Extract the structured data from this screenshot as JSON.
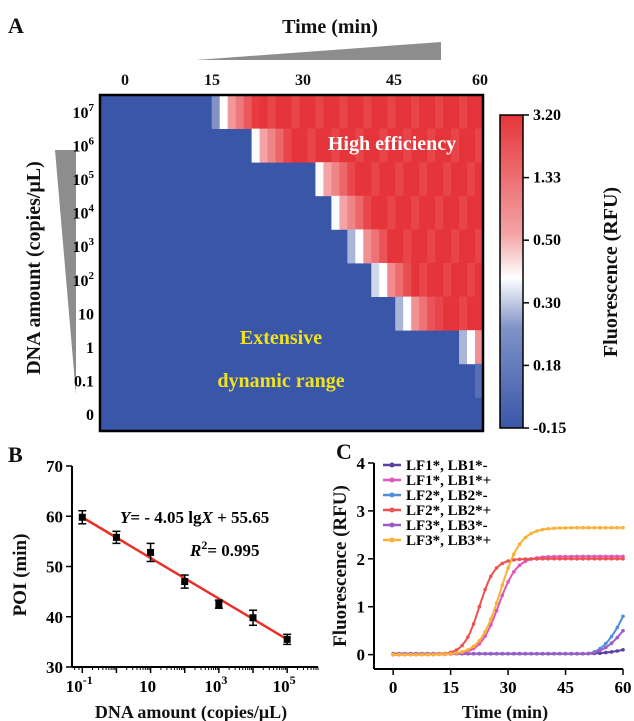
{
  "panels": {
    "a": {
      "letter": "A"
    },
    "b": {
      "letter": "B"
    },
    "c": {
      "letter": "C"
    }
  },
  "chart_data": [
    {
      "type": "heatmap",
      "panel": "A",
      "xlabel": "Time (min)",
      "ylabel": "DNA amount (copies/μL)",
      "x_ticks": [
        "0",
        "15",
        "30",
        "45",
        "60"
      ],
      "xlim": [
        0,
        60
      ],
      "rows": [
        {
          "label": "10",
          "exp": "7",
          "poi": 19.5
        },
        {
          "label": "10",
          "exp": "6",
          "poi": 25.0
        },
        {
          "label": "10",
          "exp": "5",
          "poi": 35.0
        },
        {
          "label": "10",
          "exp": "4",
          "poi": 37.5
        },
        {
          "label": "10",
          "exp": "3",
          "poi": 40.5
        },
        {
          "label": "10",
          "exp": "2",
          "poi": 44.0
        },
        {
          "label": "10",
          "exp": "",
          "poi": 48.0
        },
        {
          "label": "1",
          "exp": "",
          "poi": 58.0
        },
        {
          "label": "0.1",
          "exp": "",
          "poi": 61.0
        },
        {
          "label": "0",
          "exp": "",
          "poi": null
        }
      ],
      "colorbar": {
        "label": "Fluorescence (RFU)",
        "ticks": [
          "3.20",
          "1.33",
          "0.50",
          "0.30",
          "0.18",
          "-0.15"
        ],
        "colors": {
          "low": "#3a56a8",
          "mid": "#ffffff",
          "high": "#e6353a"
        }
      },
      "annotations": [
        {
          "text": "High efficiency",
          "color": "#ffffff"
        },
        {
          "text": "Extensive",
          "color": "#f0e31b"
        },
        {
          "text": "dynamic range",
          "color": "#f0e31b"
        }
      ]
    },
    {
      "type": "scatter",
      "panel": "B",
      "xlabel": "DNA amount (copies/μL)",
      "ylabel": "POI (min)",
      "x_scale": "log",
      "xlim": [
        0.05,
        800000
      ],
      "ylim": [
        30,
        70
      ],
      "y_ticks": [
        "30",
        "40",
        "50",
        "60",
        "70"
      ],
      "x_ticks": [
        {
          "base": "10",
          "exp": "-1",
          "value": 0.1
        },
        {
          "base": "10",
          "exp": "",
          "value": 10
        },
        {
          "base": "10",
          "exp": "3",
          "value": 1000
        },
        {
          "base": "10",
          "exp": "5",
          "value": 100000
        }
      ],
      "points": [
        {
          "x": 0.1,
          "y": 59.8,
          "err": 1.3
        },
        {
          "x": 1,
          "y": 55.8,
          "err": 1.2
        },
        {
          "x": 10,
          "y": 52.8,
          "err": 1.8
        },
        {
          "x": 100,
          "y": 47.0,
          "err": 1.3
        },
        {
          "x": 1000,
          "y": 42.5,
          "err": 0.8
        },
        {
          "x": 10000,
          "y": 39.8,
          "err": 1.5
        },
        {
          "x": 100000,
          "y": 35.5,
          "err": 1.0
        }
      ],
      "fit": {
        "slope": -4.05,
        "intercept": 55.65,
        "color": "#e8302a"
      },
      "equation": "Y= - 4.05 lgX + 55.65",
      "r2": "R² = 0.995"
    },
    {
      "type": "line",
      "panel": "C",
      "xlabel": "Time (min)",
      "ylabel": "Fluorescence (RFU)",
      "xlim": [
        -5,
        60
      ],
      "ylim": [
        -0.3,
        4
      ],
      "x_ticks": [
        "0",
        "15",
        "30",
        "45",
        "60"
      ],
      "y_ticks": [
        "0",
        "1",
        "2",
        "3",
        "4"
      ],
      "series": [
        {
          "name": "LF1*, LB1*-",
          "color": "#5b3fa0",
          "type": "neg",
          "end": 0.1
        },
        {
          "name": "LF1*, LB1*+",
          "color": "#e055b8",
          "type": "pos",
          "mid": 27.5,
          "k": 0.42,
          "top": 2.05
        },
        {
          "name": "LF2*, LB2*-",
          "color": "#4f8fdc",
          "type": "neg",
          "end": 0.8
        },
        {
          "name": "LF2*, LB2*+",
          "color": "#ef5150",
          "type": "pos",
          "mid": 22.5,
          "k": 0.5,
          "top": 2.0
        },
        {
          "name": "LF3*, LB3*-",
          "color": "#9a5cc8",
          "type": "neg",
          "end": 0.5
        },
        {
          "name": "LF3*, LB3*+",
          "color": "#f9b233",
          "type": "pos",
          "mid": 28.0,
          "k": 0.38,
          "top": 2.65
        }
      ]
    }
  ]
}
